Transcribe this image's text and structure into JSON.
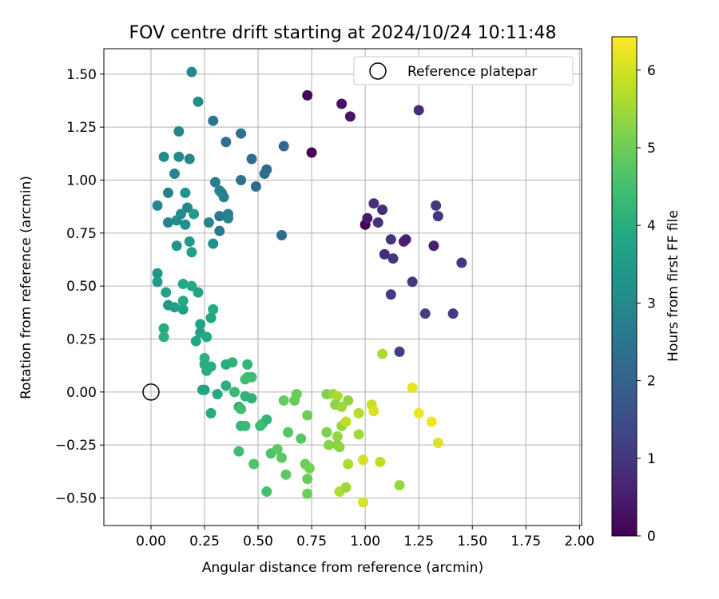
{
  "chart_data": {
    "type": "scatter",
    "title": "FOV centre drift starting at 2024/10/24 10:11:48",
    "xlabel": "Angular distance from reference (arcmin)",
    "ylabel": "Rotation from reference (arcmin)",
    "xlim": [
      -0.22,
      2.01
    ],
    "ylim": [
      -0.63,
      1.62
    ],
    "xticks": [
      "0.00",
      "0.25",
      "0.50",
      "0.75",
      "1.00",
      "1.25",
      "1.50",
      "1.75",
      "2.00"
    ],
    "yticks": [
      "−0.50",
      "−0.25",
      "0.00",
      "0.25",
      "0.50",
      "0.75",
      "1.00",
      "1.25",
      "1.50"
    ],
    "grid": true,
    "legend": {
      "position": "top-right",
      "label": "Reference platepar"
    },
    "reference_point": {
      "x": 0.0,
      "y": 0.0
    },
    "colorbar": {
      "label": "Hours from first FF file",
      "range": [
        0,
        6.43
      ],
      "ticks": [
        "0",
        "1",
        "2",
        "3",
        "4",
        "5",
        "6"
      ],
      "colormap": "viridis"
    },
    "points": [
      {
        "x": 1.0,
        "y": 0.79,
        "h": 0.0
      },
      {
        "x": 0.75,
        "y": 1.13,
        "h": 0.05
      },
      {
        "x": 0.73,
        "y": 1.4,
        "h": 0.15
      },
      {
        "x": 0.89,
        "y": 1.36,
        "h": 0.3
      },
      {
        "x": 0.93,
        "y": 1.3,
        "h": 0.35
      },
      {
        "x": 1.01,
        "y": 0.82,
        "h": 0.5
      },
      {
        "x": 1.18,
        "y": 0.71,
        "h": 0.6
      },
      {
        "x": 1.19,
        "y": 0.72,
        "h": 0.55
      },
      {
        "x": 1.32,
        "y": 0.69,
        "h": 0.55
      },
      {
        "x": 1.04,
        "y": 0.89,
        "h": 0.85
      },
      {
        "x": 1.08,
        "y": 0.86,
        "h": 0.8
      },
      {
        "x": 1.06,
        "y": 0.8,
        "h": 0.95
      },
      {
        "x": 1.12,
        "y": 0.72,
        "h": 0.95
      },
      {
        "x": 1.09,
        "y": 0.65,
        "h": 0.8
      },
      {
        "x": 1.13,
        "y": 0.63,
        "h": 1.0
      },
      {
        "x": 1.25,
        "y": 1.33,
        "h": 0.85
      },
      {
        "x": 1.33,
        "y": 0.88,
        "h": 1.0
      },
      {
        "x": 1.34,
        "y": 0.83,
        "h": 1.0
      },
      {
        "x": 1.45,
        "y": 0.61,
        "h": 1.05
      },
      {
        "x": 1.22,
        "y": 0.52,
        "h": 1.05
      },
      {
        "x": 1.12,
        "y": 0.46,
        "h": 1.1
      },
      {
        "x": 1.28,
        "y": 0.37,
        "h": 1.2
      },
      {
        "x": 1.41,
        "y": 0.37,
        "h": 1.15
      },
      {
        "x": 1.16,
        "y": 0.19,
        "h": 1.1
      },
      {
        "x": 0.61,
        "y": 0.74,
        "h": 2.25
      },
      {
        "x": 0.62,
        "y": 1.16,
        "h": 2.15
      },
      {
        "x": 0.54,
        "y": 1.05,
        "h": 2.2
      },
      {
        "x": 0.53,
        "y": 1.03,
        "h": 2.3
      },
      {
        "x": 0.49,
        "y": 0.97,
        "h": 2.25
      },
      {
        "x": 0.47,
        "y": 1.1,
        "h": 2.3
      },
      {
        "x": 0.42,
        "y": 1.22,
        "h": 2.35
      },
      {
        "x": 0.42,
        "y": 1.0,
        "h": 2.45
      },
      {
        "x": 0.35,
        "y": 1.18,
        "h": 2.4
      },
      {
        "x": 0.29,
        "y": 1.28,
        "h": 2.5
      },
      {
        "x": 0.3,
        "y": 0.99,
        "h": 2.7
      },
      {
        "x": 0.32,
        "y": 0.95,
        "h": 2.8
      },
      {
        "x": 0.33,
        "y": 0.94,
        "h": 2.85
      },
      {
        "x": 0.34,
        "y": 0.92,
        "h": 2.8
      },
      {
        "x": 0.36,
        "y": 0.84,
        "h": 2.75
      },
      {
        "x": 0.36,
        "y": 0.82,
        "h": 2.85
      },
      {
        "x": 0.32,
        "y": 0.83,
        "h": 2.55
      },
      {
        "x": 0.32,
        "y": 0.76,
        "h": 2.65
      },
      {
        "x": 0.27,
        "y": 0.8,
        "h": 2.9
      },
      {
        "x": 0.29,
        "y": 0.7,
        "h": 3.2
      },
      {
        "x": 0.19,
        "y": 1.51,
        "h": 3.0
      },
      {
        "x": 0.22,
        "y": 1.37,
        "h": 3.1
      },
      {
        "x": 0.13,
        "y": 1.23,
        "h": 2.9
      },
      {
        "x": 0.06,
        "y": 1.11,
        "h": 3.1
      },
      {
        "x": 0.13,
        "y": 1.11,
        "h": 3.0
      },
      {
        "x": 0.18,
        "y": 1.1,
        "h": 2.95
      },
      {
        "x": 0.11,
        "y": 1.03,
        "h": 2.95
      },
      {
        "x": 0.08,
        "y": 0.94,
        "h": 2.8
      },
      {
        "x": 0.16,
        "y": 0.94,
        "h": 3.3
      },
      {
        "x": 0.03,
        "y": 0.88,
        "h": 2.95
      },
      {
        "x": 0.17,
        "y": 0.87,
        "h": 2.9
      },
      {
        "x": 0.14,
        "y": 0.84,
        "h": 3.05
      },
      {
        "x": 0.2,
        "y": 0.84,
        "h": 3.5
      },
      {
        "x": 0.08,
        "y": 0.8,
        "h": 2.9
      },
      {
        "x": 0.12,
        "y": 0.81,
        "h": 3.1
      },
      {
        "x": 0.16,
        "y": 0.79,
        "h": 3.2
      },
      {
        "x": 0.18,
        "y": 0.71,
        "h": 3.4
      },
      {
        "x": 0.12,
        "y": 0.69,
        "h": 3.3
      },
      {
        "x": 0.19,
        "y": 0.66,
        "h": 3.6
      },
      {
        "x": 0.03,
        "y": 0.56,
        "h": 3.35
      },
      {
        "x": 0.03,
        "y": 0.52,
        "h": 3.5
      },
      {
        "x": 0.15,
        "y": 0.51,
        "h": 3.85
      },
      {
        "x": 0.19,
        "y": 0.5,
        "h": 3.9
      },
      {
        "x": 0.22,
        "y": 0.47,
        "h": 3.75
      },
      {
        "x": 0.07,
        "y": 0.47,
        "h": 3.7
      },
      {
        "x": 0.08,
        "y": 0.41,
        "h": 3.45
      },
      {
        "x": 0.11,
        "y": 0.4,
        "h": 3.6
      },
      {
        "x": 0.15,
        "y": 0.43,
        "h": 3.9
      },
      {
        "x": 0.15,
        "y": 0.39,
        "h": 3.65
      },
      {
        "x": 0.29,
        "y": 0.39,
        "h": 3.95
      },
      {
        "x": 0.28,
        "y": 0.35,
        "h": 3.8
      },
      {
        "x": 0.06,
        "y": 0.3,
        "h": 3.95
      },
      {
        "x": 0.06,
        "y": 0.26,
        "h": 4.05
      },
      {
        "x": 0.23,
        "y": 0.32,
        "h": 3.75
      },
      {
        "x": 0.23,
        "y": 0.28,
        "h": 3.7
      },
      {
        "x": 0.26,
        "y": 0.26,
        "h": 3.9
      },
      {
        "x": 0.21,
        "y": 0.24,
        "h": 3.8
      },
      {
        "x": 0.25,
        "y": 0.16,
        "h": 4.1
      },
      {
        "x": 0.25,
        "y": 0.13,
        "h": 4.0
      },
      {
        "x": 0.26,
        "y": 0.1,
        "h": 4.05
      },
      {
        "x": 0.28,
        "y": 0.12,
        "h": 4.0
      },
      {
        "x": 0.24,
        "y": 0.01,
        "h": 3.8
      },
      {
        "x": 0.25,
        "y": 0.01,
        "h": 3.75
      },
      {
        "x": 0.31,
        "y": -0.01,
        "h": 3.9
      },
      {
        "x": 0.28,
        "y": -0.1,
        "h": 3.95
      },
      {
        "x": 0.35,
        "y": 0.13,
        "h": 4.0
      },
      {
        "x": 0.38,
        "y": 0.14,
        "h": 4.1
      },
      {
        "x": 0.35,
        "y": 0.03,
        "h": 4.05
      },
      {
        "x": 0.39,
        "y": 0.0,
        "h": 4.3
      },
      {
        "x": 0.44,
        "y": 0.06,
        "h": 4.4
      },
      {
        "x": 0.45,
        "y": 0.07,
        "h": 4.5
      },
      {
        "x": 0.47,
        "y": 0.07,
        "h": 4.4
      },
      {
        "x": 0.45,
        "y": 0.13,
        "h": 4.2
      },
      {
        "x": 0.44,
        "y": -0.02,
        "h": 4.15
      },
      {
        "x": 0.47,
        "y": -0.03,
        "h": 4.1
      },
      {
        "x": 0.41,
        "y": -0.07,
        "h": 4.1
      },
      {
        "x": 0.42,
        "y": -0.08,
        "h": 4.4
      },
      {
        "x": 0.42,
        "y": -0.16,
        "h": 4.2
      },
      {
        "x": 0.44,
        "y": -0.16,
        "h": 4.3
      },
      {
        "x": 0.51,
        "y": -0.16,
        "h": 4.35
      },
      {
        "x": 0.52,
        "y": -0.15,
        "h": 4.45
      },
      {
        "x": 0.54,
        "y": -0.13,
        "h": 4.2
      },
      {
        "x": 0.41,
        "y": -0.28,
        "h": 4.4
      },
      {
        "x": 0.48,
        "y": -0.34,
        "h": 4.6
      },
      {
        "x": 0.54,
        "y": -0.47,
        "h": 4.5
      },
      {
        "x": 0.56,
        "y": -0.29,
        "h": 4.6
      },
      {
        "x": 0.59,
        "y": -0.27,
        "h": 4.8
      },
      {
        "x": 0.61,
        "y": -0.31,
        "h": 4.8
      },
      {
        "x": 0.63,
        "y": -0.39,
        "h": 4.8
      },
      {
        "x": 0.64,
        "y": -0.19,
        "h": 4.7
      },
      {
        "x": 0.7,
        "y": -0.22,
        "h": 4.7
      },
      {
        "x": 0.62,
        "y": -0.04,
        "h": 4.9
      },
      {
        "x": 0.67,
        "y": -0.04,
        "h": 4.9
      },
      {
        "x": 0.68,
        "y": -0.01,
        "h": 4.95
      },
      {
        "x": 0.73,
        "y": -0.11,
        "h": 5.0
      },
      {
        "x": 0.72,
        "y": -0.34,
        "h": 5.0
      },
      {
        "x": 0.74,
        "y": -0.36,
        "h": 5.1
      },
      {
        "x": 0.73,
        "y": -0.41,
        "h": 4.95
      },
      {
        "x": 0.73,
        "y": -0.48,
        "h": 5.0
      },
      {
        "x": 0.82,
        "y": -0.19,
        "h": 5.15
      },
      {
        "x": 0.83,
        "y": -0.25,
        "h": 5.3
      },
      {
        "x": 0.82,
        "y": -0.01,
        "h": 5.2
      },
      {
        "x": 0.85,
        "y": -0.01,
        "h": 5.4
      },
      {
        "x": 0.87,
        "y": -0.02,
        "h": 5.6
      },
      {
        "x": 0.86,
        "y": -0.06,
        "h": 5.3
      },
      {
        "x": 0.89,
        "y": -0.07,
        "h": 5.5
      },
      {
        "x": 0.87,
        "y": -0.21,
        "h": 5.4
      },
      {
        "x": 0.87,
        "y": -0.25,
        "h": 5.2
      },
      {
        "x": 0.88,
        "y": -0.26,
        "h": 5.35
      },
      {
        "x": 0.88,
        "y": -0.47,
        "h": 5.65
      },
      {
        "x": 0.91,
        "y": -0.45,
        "h": 5.5
      },
      {
        "x": 0.89,
        "y": -0.16,
        "h": 5.4
      },
      {
        "x": 0.91,
        "y": -0.14,
        "h": 5.8
      },
      {
        "x": 0.92,
        "y": -0.04,
        "h": 5.35
      },
      {
        "x": 0.92,
        "y": -0.34,
        "h": 5.6
      },
      {
        "x": 0.97,
        "y": -0.1,
        "h": 5.7
      },
      {
        "x": 0.97,
        "y": -0.2,
        "h": 5.5
      },
      {
        "x": 0.99,
        "y": -0.32,
        "h": 6.0
      },
      {
        "x": 0.99,
        "y": -0.52,
        "h": 6.05
      },
      {
        "x": 1.03,
        "y": -0.06,
        "h": 5.9
      },
      {
        "x": 1.04,
        "y": -0.09,
        "h": 6.1
      },
      {
        "x": 1.07,
        "y": -0.33,
        "h": 5.8
      },
      {
        "x": 1.08,
        "y": 0.18,
        "h": 5.6
      },
      {
        "x": 1.16,
        "y": -0.44,
        "h": 5.4
      },
      {
        "x": 1.22,
        "y": 0.02,
        "h": 6.2
      },
      {
        "x": 1.25,
        "y": -0.1,
        "h": 6.3
      },
      {
        "x": 1.31,
        "y": -0.14,
        "h": 6.3
      },
      {
        "x": 1.34,
        "y": -0.24,
        "h": 6.1
      }
    ]
  }
}
